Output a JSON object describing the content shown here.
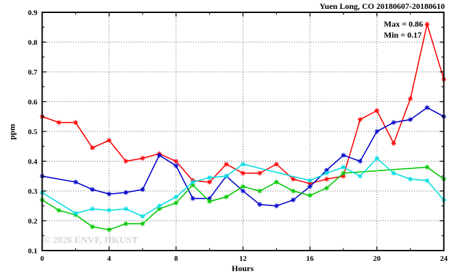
{
  "title": "Yuen Long, CO 20180607-20180610",
  "annotations": {
    "max_label": "Max = 0.86",
    "min_label": "Min = 0.17"
  },
  "watermark": "© 2026 ENVF, HKUST",
  "colors": {
    "red": "#ff0000",
    "blue": "#0000cd",
    "green": "#00c800",
    "cyan": "#00dde0",
    "frame": "#000000",
    "grid": "#555555",
    "watermark": "#d6d6d6"
  },
  "chart_data": {
    "type": "line",
    "title": "Yuen Long, CO 20180607-20180610",
    "xlabel": "Hours",
    "ylabel": "ppm",
    "xlim": [
      0,
      24
    ],
    "ylim": [
      0.1,
      0.9
    ],
    "xticks": [
      0,
      4,
      8,
      12,
      16,
      20,
      24
    ],
    "yticks": [
      0.1,
      0.2,
      0.3,
      0.4,
      0.5,
      0.6,
      0.7,
      0.8,
      0.9
    ],
    "grid": true,
    "legend": false,
    "marker": "asterisk",
    "x": [
      0,
      1,
      2,
      3,
      4,
      5,
      6,
      7,
      8,
      9,
      10,
      11,
      12,
      13,
      14,
      15,
      16,
      17,
      18,
      19,
      20,
      21,
      22,
      23,
      24
    ],
    "series": [
      {
        "name": "red",
        "values": [
          0.55,
          0.53,
          0.53,
          0.445,
          0.47,
          0.4,
          0.41,
          0.425,
          0.4,
          0.335,
          0.33,
          0.39,
          0.36,
          0.36,
          0.39,
          0.34,
          0.325,
          0.34,
          0.35,
          0.54,
          0.57,
          0.46,
          0.61,
          0.86,
          0.675
        ]
      },
      {
        "name": "blue",
        "values": [
          0.35,
          null,
          0.33,
          0.305,
          0.29,
          0.295,
          0.305,
          0.42,
          0.385,
          0.275,
          0.275,
          0.35,
          0.3,
          0.255,
          0.25,
          0.27,
          0.315,
          0.37,
          0.42,
          0.4,
          0.5,
          0.53,
          0.54,
          0.58,
          0.55
        ]
      },
      {
        "name": "green",
        "values": [
          0.27,
          0.235,
          0.22,
          0.18,
          0.17,
          0.19,
          0.19,
          0.24,
          0.26,
          0.32,
          0.265,
          0.28,
          0.315,
          0.3,
          0.33,
          0.3,
          0.285,
          0.31,
          0.36,
          null,
          null,
          null,
          null,
          0.38,
          0.34
        ]
      },
      {
        "name": "cyan",
        "values": [
          0.295,
          null,
          0.225,
          0.24,
          0.235,
          0.24,
          0.215,
          0.25,
          0.28,
          0.33,
          0.345,
          0.35,
          0.39,
          null,
          null,
          null,
          0.335,
          0.36,
          0.38,
          0.35,
          0.41,
          0.36,
          0.34,
          0.335,
          0.27
        ]
      }
    ],
    "stats": {
      "max": 0.86,
      "min": 0.17
    }
  }
}
